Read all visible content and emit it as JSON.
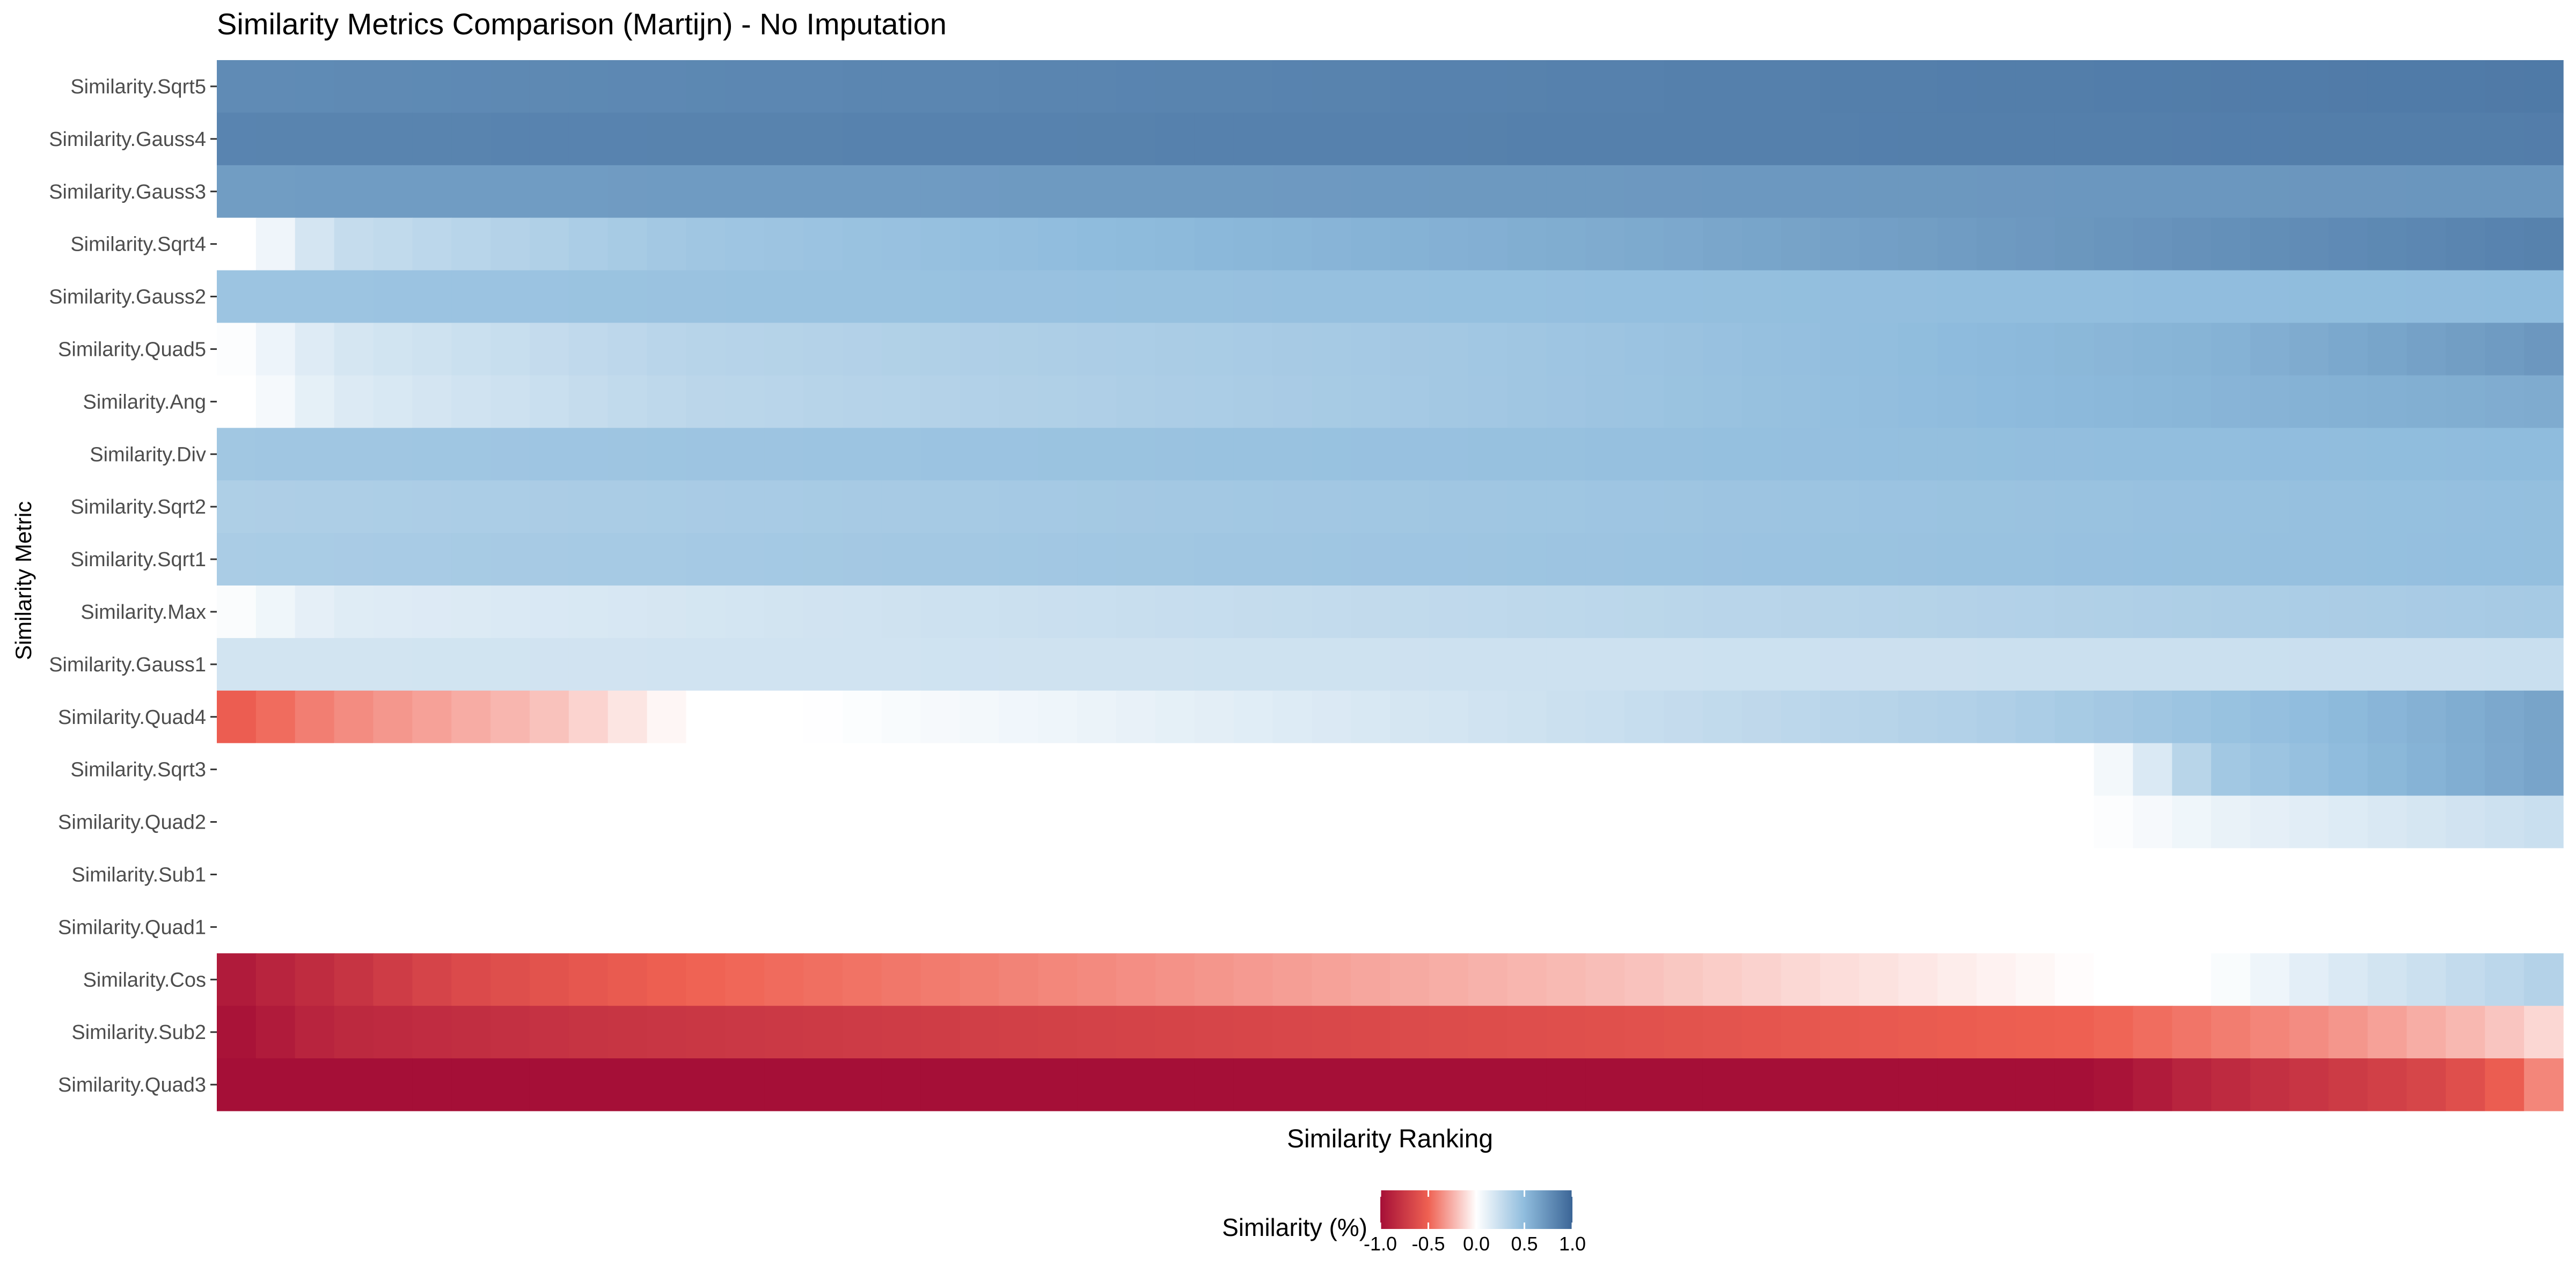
{
  "chart_data": {
    "type": "heatmap",
    "title": "Similarity Metrics Comparison (Martijn) - No Imputation",
    "xlabel": "Similarity Ranking",
    "ylabel": "Similarity Metric",
    "rows": [
      {
        "label": "Similarity.Sqrt5",
        "profile": [
          [
            0,
            0.78
          ],
          [
            1,
            0.88
          ]
        ]
      },
      {
        "label": "Similarity.Gauss4",
        "profile": [
          [
            0,
            0.82
          ],
          [
            1,
            0.86
          ]
        ]
      },
      {
        "label": "Similarity.Gauss3",
        "profile": [
          [
            0,
            0.68
          ],
          [
            1,
            0.72
          ]
        ]
      },
      {
        "label": "Similarity.Sqrt4",
        "profile": [
          [
            0,
            0.0
          ],
          [
            0.015,
            0.0
          ],
          [
            0.05,
            0.25
          ],
          [
            0.2,
            0.42
          ],
          [
            0.6,
            0.6
          ],
          [
            1,
            0.84
          ]
        ]
      },
      {
        "label": "Similarity.Gauss2",
        "profile": [
          [
            0,
            0.44
          ],
          [
            1,
            0.5
          ]
        ]
      },
      {
        "label": "Similarity.Quad5",
        "profile": [
          [
            0,
            -0.12
          ],
          [
            0.005,
            0.0
          ],
          [
            0.05,
            0.18
          ],
          [
            0.2,
            0.32
          ],
          [
            0.55,
            0.42
          ],
          [
            0.85,
            0.55
          ],
          [
            1,
            0.72
          ]
        ]
      },
      {
        "label": "Similarity.Ang",
        "profile": [
          [
            0,
            0.0
          ],
          [
            0.015,
            0.0
          ],
          [
            0.05,
            0.15
          ],
          [
            0.2,
            0.3
          ],
          [
            0.5,
            0.4
          ],
          [
            1,
            0.6
          ]
        ]
      },
      {
        "label": "Similarity.Div",
        "profile": [
          [
            0,
            0.42
          ],
          [
            1,
            0.5
          ]
        ]
      },
      {
        "label": "Similarity.Sqrt2",
        "profile": [
          [
            0,
            0.36
          ],
          [
            1,
            0.48
          ]
        ]
      },
      {
        "label": "Similarity.Sqrt1",
        "profile": [
          [
            0,
            0.38
          ],
          [
            1,
            0.48
          ]
        ]
      },
      {
        "label": "Similarity.Max",
        "profile": [
          [
            0,
            0.0
          ],
          [
            0.05,
            0.14
          ],
          [
            0.4,
            0.25
          ],
          [
            1,
            0.4
          ]
        ]
      },
      {
        "label": "Similarity.Gauss1",
        "profile": [
          [
            0,
            0.2
          ],
          [
            1,
            0.24
          ]
        ]
      },
      {
        "label": "Similarity.Quad4",
        "profile": [
          [
            0,
            -0.55
          ],
          [
            0.05,
            -0.38
          ],
          [
            0.14,
            -0.2
          ],
          [
            0.2,
            0.0
          ],
          [
            0.25,
            0.0
          ],
          [
            0.5,
            0.18
          ],
          [
            0.75,
            0.35
          ],
          [
            0.9,
            0.5
          ],
          [
            1,
            0.65
          ]
        ]
      },
      {
        "label": "Similarity.Sqrt3",
        "profile": [
          [
            0,
            0.0
          ],
          [
            0.8,
            0.0
          ],
          [
            0.83,
            0.2
          ],
          [
            0.85,
            0.4
          ],
          [
            1,
            0.65
          ]
        ]
      },
      {
        "label": "Similarity.Quad2",
        "profile": [
          [
            0,
            0.0
          ],
          [
            0.8,
            0.0
          ],
          [
            0.86,
            0.1
          ],
          [
            1,
            0.25
          ]
        ]
      },
      {
        "label": "Similarity.Sub1",
        "profile": [
          [
            0,
            0.0
          ],
          [
            1,
            0.0
          ]
        ]
      },
      {
        "label": "Similarity.Quad1",
        "profile": [
          [
            0,
            0.0
          ],
          [
            1,
            0.0
          ]
        ]
      },
      {
        "label": "Similarity.Cos",
        "profile": [
          [
            0,
            -0.95
          ],
          [
            0.05,
            -0.8
          ],
          [
            0.1,
            -0.65
          ],
          [
            0.2,
            -0.5
          ],
          [
            0.4,
            -0.35
          ],
          [
            0.6,
            -0.2
          ],
          [
            0.75,
            -0.05
          ],
          [
            0.8,
            0.0
          ],
          [
            0.85,
            0.0
          ],
          [
            0.9,
            0.15
          ],
          [
            1,
            0.35
          ]
        ]
      },
      {
        "label": "Similarity.Sub2",
        "profile": [
          [
            0,
            -1.0
          ],
          [
            0.05,
            -0.85
          ],
          [
            0.15,
            -0.78
          ],
          [
            0.3,
            -0.72
          ],
          [
            0.4,
            -0.68
          ],
          [
            0.6,
            -0.6
          ],
          [
            0.8,
            -0.5
          ],
          [
            0.9,
            -0.35
          ],
          [
            0.97,
            -0.2
          ],
          [
            1,
            -0.1
          ]
        ]
      },
      {
        "label": "Similarity.Quad3",
        "profile": [
          [
            0,
            -1.0
          ],
          [
            0.8,
            -1.0
          ],
          [
            0.85,
            -0.85
          ],
          [
            0.95,
            -0.65
          ],
          [
            0.98,
            -0.5
          ],
          [
            1,
            -0.3
          ]
        ]
      }
    ],
    "legend": {
      "title": "Similarity (%)",
      "placement": "bottom",
      "ticks": [
        "-1.0",
        "-0.5",
        "0.0",
        "0.5",
        "1.0"
      ],
      "limits": [
        -1,
        1
      ]
    },
    "colorscale": {
      "low": "#a50f37",
      "mid_low": "#ef6152",
      "mid": "#ffffff",
      "mid_high": "#8fbcdd",
      "high": "#3b6596"
    },
    "grid": false
  }
}
